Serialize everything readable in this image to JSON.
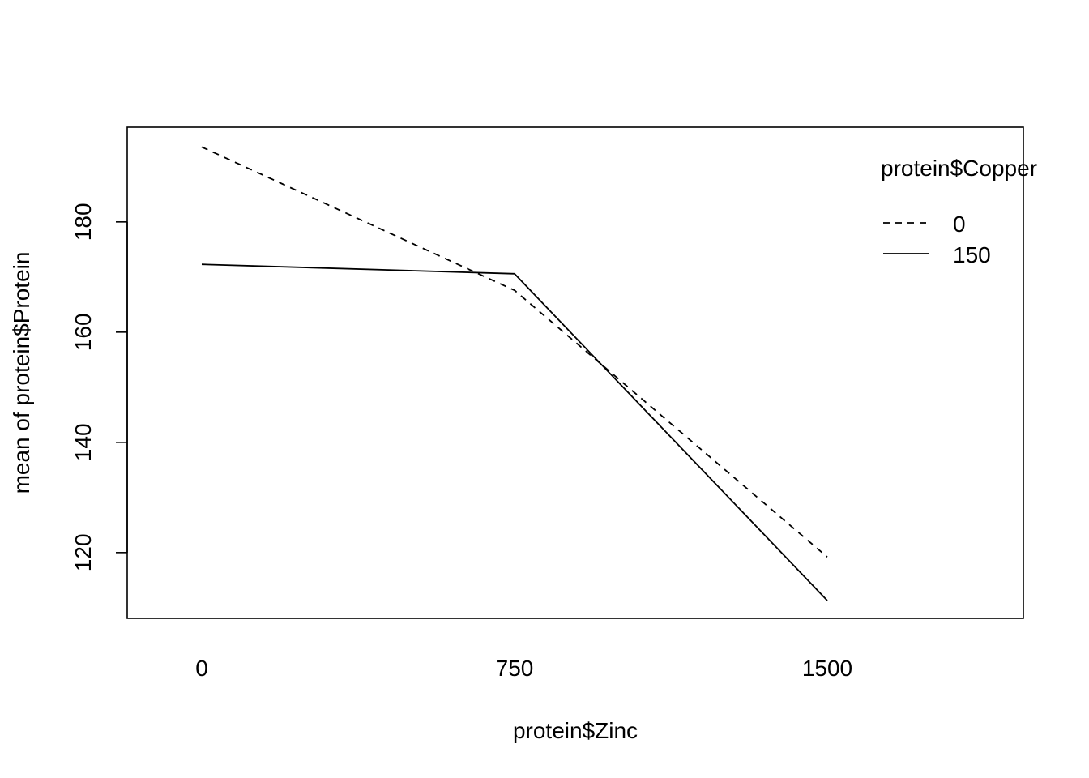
{
  "chart_data": {
    "type": "line",
    "xlabel": "protein$Zinc",
    "ylabel": "mean of  protein$Protein",
    "categories": [
      "0",
      "750",
      "1500"
    ],
    "ylim": [
      108,
      197
    ],
    "yticks": [
      120,
      140,
      160,
      180
    ],
    "legend": {
      "title": "protein$Copper",
      "placement": "top-right"
    },
    "series": [
      {
        "name": "0",
        "style": "dashed",
        "values": [
          193.6,
          167.6,
          119.2
        ]
      },
      {
        "name": "150",
        "style": "solid",
        "values": [
          172.3,
          170.6,
          111.3
        ]
      }
    ],
    "grid": false
  }
}
